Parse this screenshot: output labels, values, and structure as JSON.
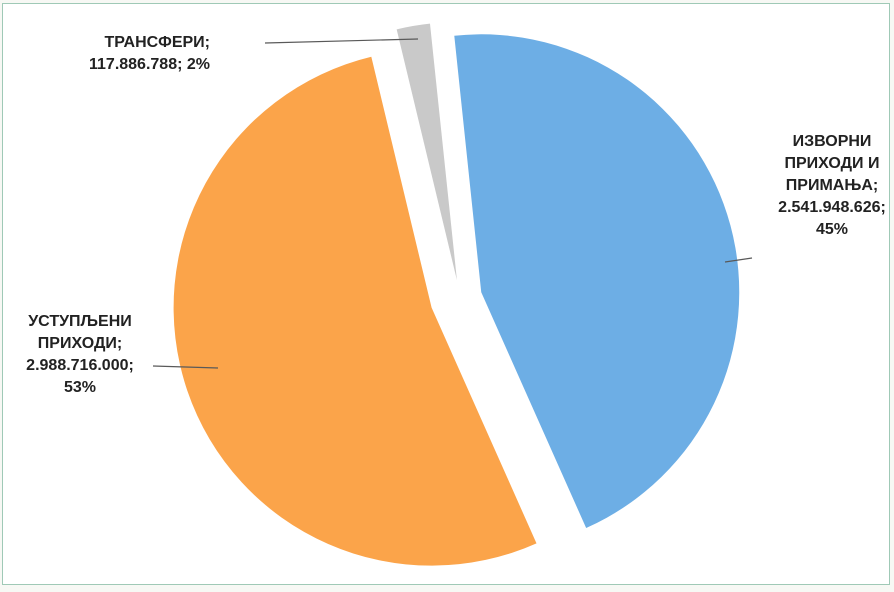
{
  "chart_data": {
    "type": "pie",
    "title": "",
    "slices": [
      {
        "name": "ИЗВОРНИ ПРИХОДИ И ПРИМАЊА",
        "value": 2541948626,
        "percent": 45,
        "label_lines": [
          "ИЗВОРНИ",
          "ПРИХОДИ И",
          "ПРИМАЊА;",
          "2.541.948.626;",
          "45%"
        ],
        "color": "#6daee5"
      },
      {
        "name": "УСТУПЉЕНИ ПРИХОДИ",
        "value": 2988716000,
        "percent": 53,
        "label_lines": [
          "УСТУПЉЕНИ",
          "ПРИХОДИ;",
          "2.988.716.000;",
          "53%"
        ],
        "color": "#fba44a"
      },
      {
        "name": "ТРАНСФЕРИ",
        "value": 117886788,
        "percent": 2,
        "label_lines": [
          "ТРАНСФЕРИ;",
          "117.886.788; 2%"
        ],
        "color": "#c9c9c9"
      }
    ],
    "legend": "none",
    "exploded": true
  }
}
